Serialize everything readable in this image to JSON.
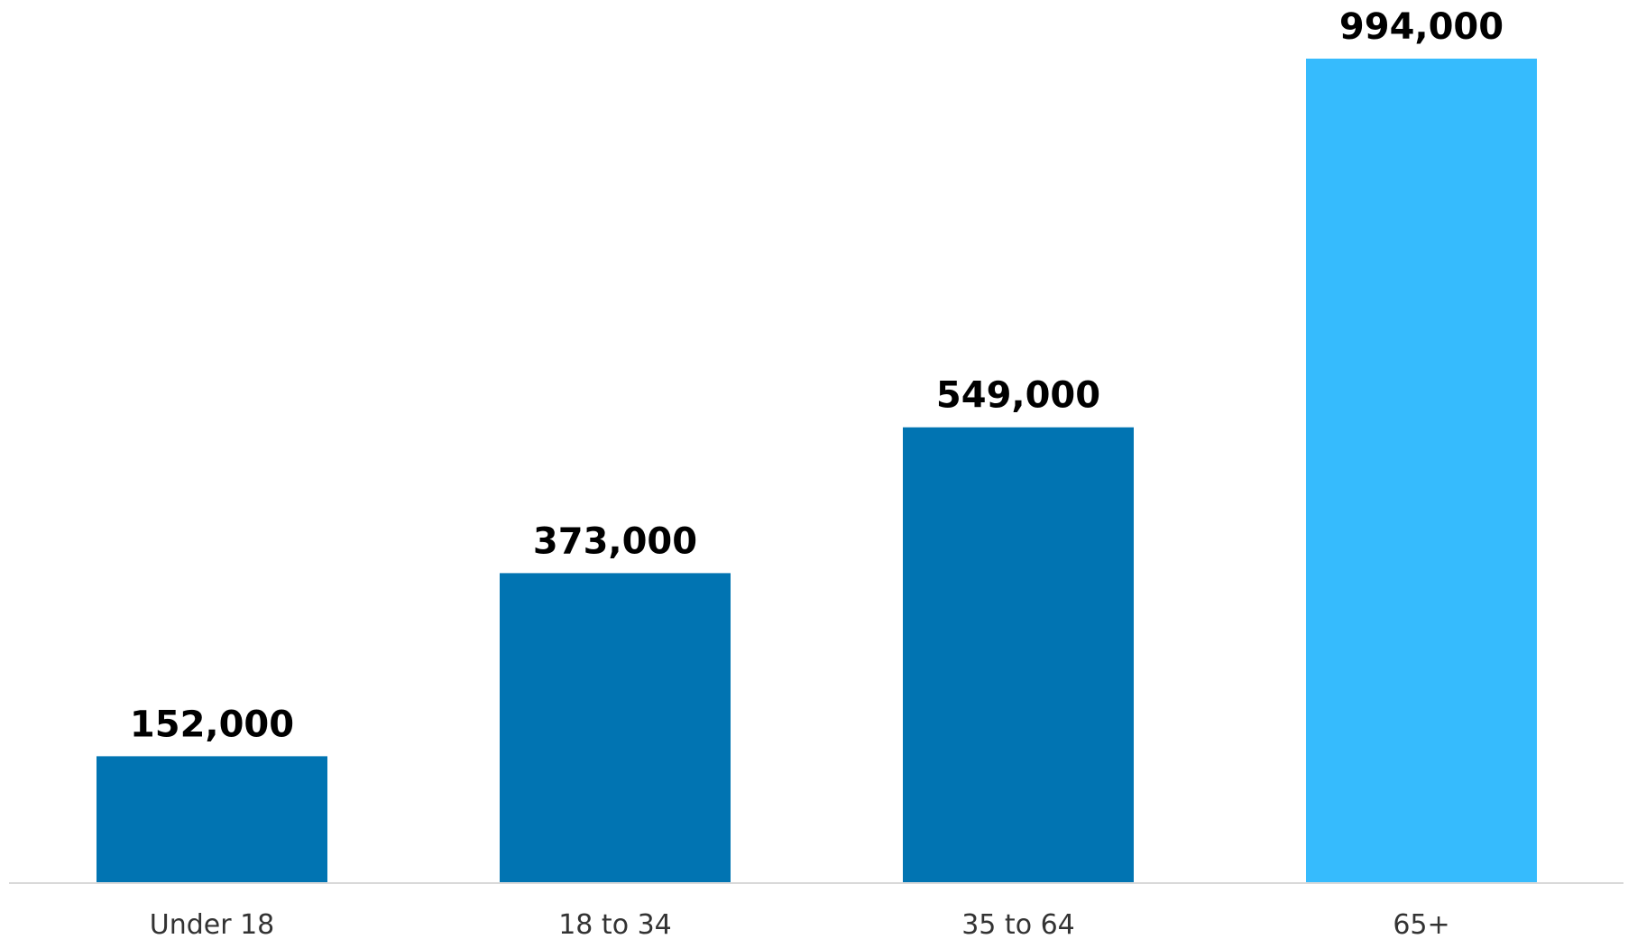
{
  "chart_data": {
    "type": "bar",
    "title": "",
    "xlabel": "",
    "ylabel": "",
    "categories": [
      "Under 18",
      "18 to 34",
      "35 to 64",
      "65+"
    ],
    "values": [
      152000,
      373000,
      549000,
      994000
    ],
    "value_labels": [
      "152,000",
      "373,000",
      "549,000",
      "994,000"
    ],
    "ylim": [
      0,
      1010000
    ],
    "grid": false,
    "legend": "none",
    "colors": {
      "default_bar": "#0174B2",
      "highlight_bar": "#36BBFD",
      "baseline": "#D9D9D9",
      "value_text": "#000000",
      "category_text": "#333333"
    },
    "highlight_index": 3
  }
}
